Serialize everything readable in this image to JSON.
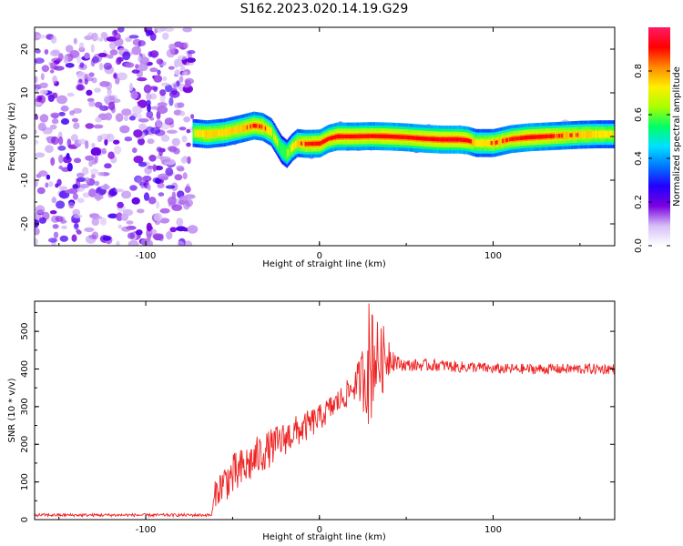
{
  "title": "S162.2023.020.14.19.G29",
  "chart_data": [
    {
      "type": "heatmap",
      "title": "S162.2023.020.14.19.G29",
      "xlabel": "Height of straight line (km)",
      "ylabel": "Frequency (Hz)",
      "xlim": [
        -164,
        170
      ],
      "ylim": [
        -25,
        25
      ],
      "xticks": [
        -100,
        0,
        100
      ],
      "yticks": [
        -20,
        -10,
        0,
        10,
        20
      ],
      "colorbar": {
        "label": "Normalized spectral amplitude",
        "range": [
          0,
          1
        ],
        "ticks": [
          0.0,
          0.2,
          0.4,
          0.6,
          0.8
        ],
        "colors": [
          "#ffffff",
          "#d6bff7",
          "#7a00e0",
          "#2200ff",
          "#0077ff",
          "#00e0ff",
          "#00ff66",
          "#aaff00",
          "#ffee00",
          "#ff8800",
          "#ff0000",
          "#ff1a66"
        ]
      },
      "noise_region_x": [
        -164,
        -73
      ],
      "ridge": {
        "x": [
          -73,
          -65,
          -55,
          -45,
          -38,
          -33,
          -28,
          -25,
          -22,
          -19,
          -16,
          -13,
          -8,
          0,
          5,
          10,
          20,
          30,
          40,
          50,
          60,
          70,
          80,
          85,
          90,
          100,
          110,
          120,
          130,
          140,
          150,
          160,
          170
        ],
        "freq_hz": [
          0.8,
          0.5,
          0.9,
          1.8,
          2.5,
          2.2,
          1.0,
          -1.0,
          -3.0,
          -4.0,
          -2.5,
          -1.5,
          -1.7,
          -1.6,
          -0.5,
          0.0,
          0.0,
          0.1,
          0.0,
          -0.2,
          -0.5,
          -0.7,
          -0.7,
          -0.9,
          -1.5,
          -1.5,
          -0.6,
          -0.2,
          0.0,
          0.2,
          0.4,
          0.5,
          0.5
        ],
        "amplitude": [
          0.55,
          0.7,
          0.65,
          0.7,
          0.8,
          0.75,
          0.6,
          0.5,
          0.45,
          0.5,
          0.6,
          0.65,
          0.8,
          0.85,
          0.8,
          0.9,
          0.85,
          0.85,
          0.9,
          0.85,
          0.9,
          0.95,
          0.95,
          0.9,
          0.6,
          0.7,
          0.8,
          0.9,
          0.85,
          0.75,
          0.7,
          0.65,
          0.6
        ]
      }
    },
    {
      "type": "line",
      "xlabel": "Height of straight line (km)",
      "ylabel": "SNR (10 * v/v)",
      "xlim": [
        -164,
        170
      ],
      "ylim": [
        0,
        580
      ],
      "xticks": [
        -100,
        0,
        100
      ],
      "yticks": [
        0,
        100,
        200,
        300,
        400,
        500
      ],
      "color": "#ee2222",
      "series": {
        "x": [
          -164,
          -140,
          -120,
          -100,
          -80,
          -62,
          -60,
          -55,
          -50,
          -45,
          -40,
          -35,
          -30,
          -25,
          -20,
          -15,
          -10,
          -5,
          0,
          5,
          10,
          15,
          20,
          23,
          25,
          27,
          28,
          29,
          30,
          32,
          35,
          38,
          40,
          42,
          45,
          50,
          60,
          70,
          80,
          90,
          100,
          110,
          120,
          130,
          140,
          150,
          160,
          170
        ],
        "y": [
          12,
          12,
          12,
          12,
          12,
          12,
          70,
          100,
          115,
          130,
          150,
          170,
          185,
          200,
          215,
          230,
          240,
          255,
          270,
          290,
          310,
          330,
          355,
          370,
          380,
          395,
          460,
          330,
          470,
          430,
          420,
          430,
          440,
          430,
          415,
          410,
          410,
          410,
          405,
          405,
          400,
          400,
          400,
          400,
          400,
          400,
          400,
          400
        ],
        "noise_amplitude": [
          4,
          4,
          4,
          4,
          4,
          4,
          35,
          50,
          60,
          60,
          55,
          55,
          50,
          50,
          45,
          45,
          40,
          40,
          35,
          35,
          35,
          35,
          40,
          60,
          90,
          130,
          200,
          200,
          200,
          120,
          90,
          90,
          60,
          35,
          20,
          16,
          16,
          16,
          15,
          15,
          14,
          14,
          14,
          14,
          14,
          14,
          14,
          14
        ]
      }
    }
  ]
}
